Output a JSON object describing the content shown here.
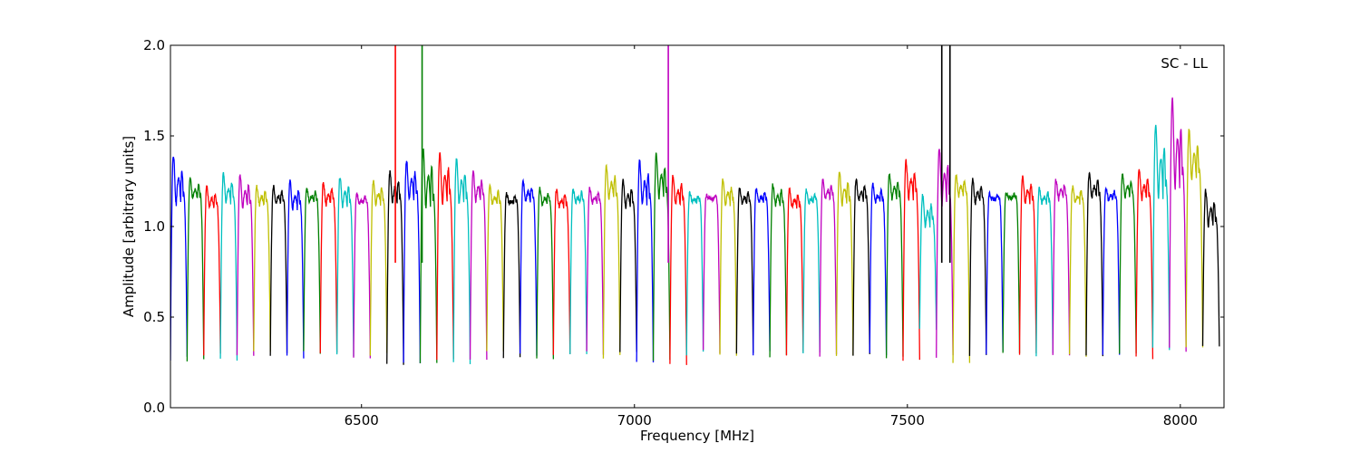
{
  "chart_data": {
    "type": "line",
    "title": "",
    "annotation": "SC - LL",
    "xlabel": "Frequency [MHz]",
    "ylabel": "Amplitude [arbitrary units]",
    "xlim": [
      6150,
      8080
    ],
    "ylim": [
      0.0,
      2.0
    ],
    "xticks": [
      6500,
      7000,
      7500,
      8000
    ],
    "xtick_labels": [
      "6500",
      "7000",
      "7500",
      "8000"
    ],
    "yticks": [
      0.0,
      0.5,
      1.0,
      1.5,
      2.0
    ],
    "ytick_labels": [
      "0.0",
      "0.5",
      "1.0",
      "1.5",
      "2.0"
    ],
    "grid": false,
    "legend": "none",
    "color_cycle": [
      "#0000ff",
      "#008000",
      "#ff0000",
      "#00bfbf",
      "#bf00bf",
      "#bfbf00",
      "#000000"
    ],
    "band_start_mhz": 6150,
    "band_width_mhz": 30.5,
    "band_count": 63,
    "band_peaks": [
      1.39,
      1.27,
      1.22,
      1.29,
      1.28,
      1.22,
      1.22,
      1.25,
      1.21,
      1.24,
      1.27,
      1.18,
      1.25,
      1.3,
      1.36,
      1.43,
      1.41,
      1.37,
      1.3,
      1.22,
      1.18,
      1.25,
      1.21,
      1.2,
      1.21,
      1.21,
      1.33,
      1.26,
      1.36,
      1.4,
      1.28,
      1.18,
      1.17,
      1.26,
      1.21,
      1.21,
      1.23,
      1.21,
      1.2,
      1.26,
      1.3,
      1.26,
      1.23,
      1.29,
      1.36,
      1.17,
      1.43,
      1.29,
      1.26,
      1.18,
      1.18,
      1.27,
      1.21,
      1.26,
      1.22,
      1.29,
      1.21,
      1.29,
      1.31,
      1.56,
      1.7,
      1.53,
      1.2
    ],
    "band_troughs": [
      1.12,
      1.15,
      1.1,
      1.13,
      1.11,
      1.12,
      1.13,
      1.1,
      1.14,
      1.12,
      1.11,
      1.13,
      1.12,
      1.13,
      1.15,
      1.1,
      1.12,
      1.12,
      1.14,
      1.12,
      1.13,
      1.14,
      1.12,
      1.11,
      1.13,
      1.13,
      1.15,
      1.1,
      1.12,
      1.15,
      1.12,
      1.14,
      1.16,
      1.12,
      1.13,
      1.13,
      1.12,
      1.1,
      1.13,
      1.15,
      1.12,
      1.14,
      1.13,
      1.15,
      1.15,
      1.0,
      1.12,
      1.17,
      1.13,
      1.15,
      1.16,
      1.13,
      1.13,
      1.15,
      1.13,
      1.16,
      1.15,
      1.16,
      1.15,
      1.15,
      1.2,
      1.25,
      1.0
    ],
    "band_mins": [
      0.27,
      0.26,
      0.3,
      0.27,
      0.28,
      0.3,
      0.29,
      0.28,
      0.3,
      0.3,
      0.29,
      0.28,
      0.29,
      0.24,
      0.25,
      0.24,
      0.27,
      0.25,
      0.26,
      0.3,
      0.28,
      0.29,
      0.28,
      0.3,
      0.29,
      0.3,
      0.28,
      0.3,
      0.25,
      0.26,
      0.24,
      0.3,
      0.31,
      0.29,
      0.3,
      0.3,
      0.28,
      0.3,
      0.3,
      0.29,
      0.29,
      0.29,
      0.3,
      0.28,
      0.26,
      0.43,
      0.28,
      0.24,
      0.29,
      0.3,
      0.3,
      0.29,
      0.29,
      0.3,
      0.29,
      0.29,
      0.3,
      0.3,
      0.27,
      0.33,
      0.32,
      0.33,
      0.33
    ],
    "spikes": [
      {
        "x": 6562,
        "y": 2.0,
        "color": "#ff0000"
      },
      {
        "x": 6611,
        "y": 2.0,
        "color": "#008000"
      },
      {
        "x": 7062,
        "y": 2.0,
        "color": "#bf00bf"
      },
      {
        "x": 7563,
        "y": 2.0,
        "color": "#000000"
      },
      {
        "x": 7578,
        "y": 2.0,
        "color": "#000000"
      }
    ]
  }
}
